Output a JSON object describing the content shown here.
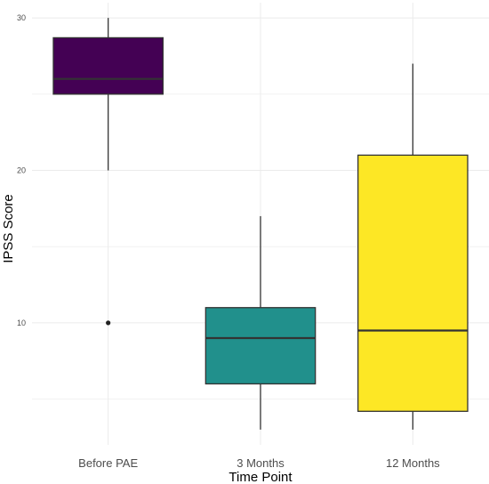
{
  "chart_data": {
    "type": "box",
    "xlabel": "Time Point",
    "ylabel": "IPSS Score",
    "ylim": [
      2,
      31
    ],
    "yticks": [
      10,
      20,
      30
    ],
    "grid": true,
    "legend": "none",
    "categories": [
      "Before PAE",
      "3 Months",
      "12 Months"
    ],
    "boxes": [
      {
        "category": "Before PAE",
        "whisker_low": 20,
        "q1": 25,
        "median": 26,
        "q3": 28.7,
        "whisker_high": 30,
        "outliers": [
          10
        ],
        "color": "#440154"
      },
      {
        "category": "3 Months",
        "whisker_low": 3,
        "q1": 6,
        "median": 9,
        "q3": 11,
        "whisker_high": 17,
        "outliers": [],
        "color": "#21908C"
      },
      {
        "category": "12 Months",
        "whisker_low": 3,
        "q1": 4.2,
        "median": 9.5,
        "q3": 21,
        "whisker_high": 27,
        "outliers": [],
        "color": "#FDE725"
      }
    ]
  }
}
